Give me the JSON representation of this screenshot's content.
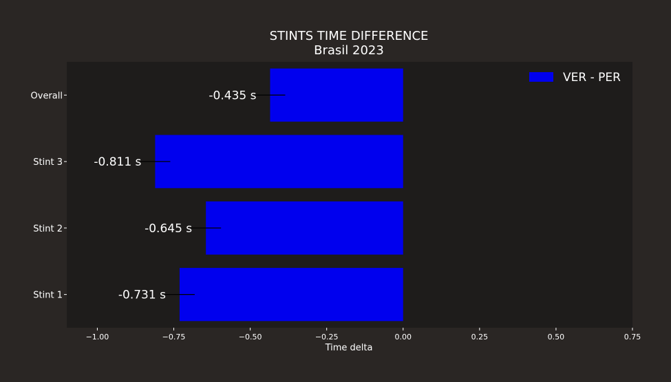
{
  "chart_data": {
    "type": "bar",
    "orientation": "horizontal",
    "title": "STINTS TIME DIFFERENCE",
    "subtitle": "Brasil 2023",
    "xlabel": "Time delta",
    "ylabel": "",
    "categories": [
      "Overall",
      "Stint 3",
      "Stint 2",
      "Stint 1"
    ],
    "series": [
      {
        "name": "VER - PER",
        "values": [
          -0.435,
          -0.811,
          -0.645,
          -0.731
        ],
        "color": "#0000ee"
      }
    ],
    "data_labels": [
      "-0.435 s",
      "-0.811 s",
      "-0.645 s",
      "-0.731 s"
    ],
    "xlim": [
      -1.1,
      0.75
    ],
    "xticks": [
      -1.0,
      -0.75,
      -0.5,
      -0.25,
      0.0,
      0.25,
      0.5,
      0.75
    ],
    "xtick_labels": [
      "−1.00",
      "−0.75",
      "−0.50",
      "−0.25",
      "0.00",
      "0.25",
      "0.50",
      "0.75"
    ],
    "grid": false,
    "legend_position": "top-right"
  },
  "colors": {
    "figure_background": "#2a2624",
    "plot_background": "#1e1c1b",
    "text": "#ffffff",
    "bar": "#0000ee"
  }
}
